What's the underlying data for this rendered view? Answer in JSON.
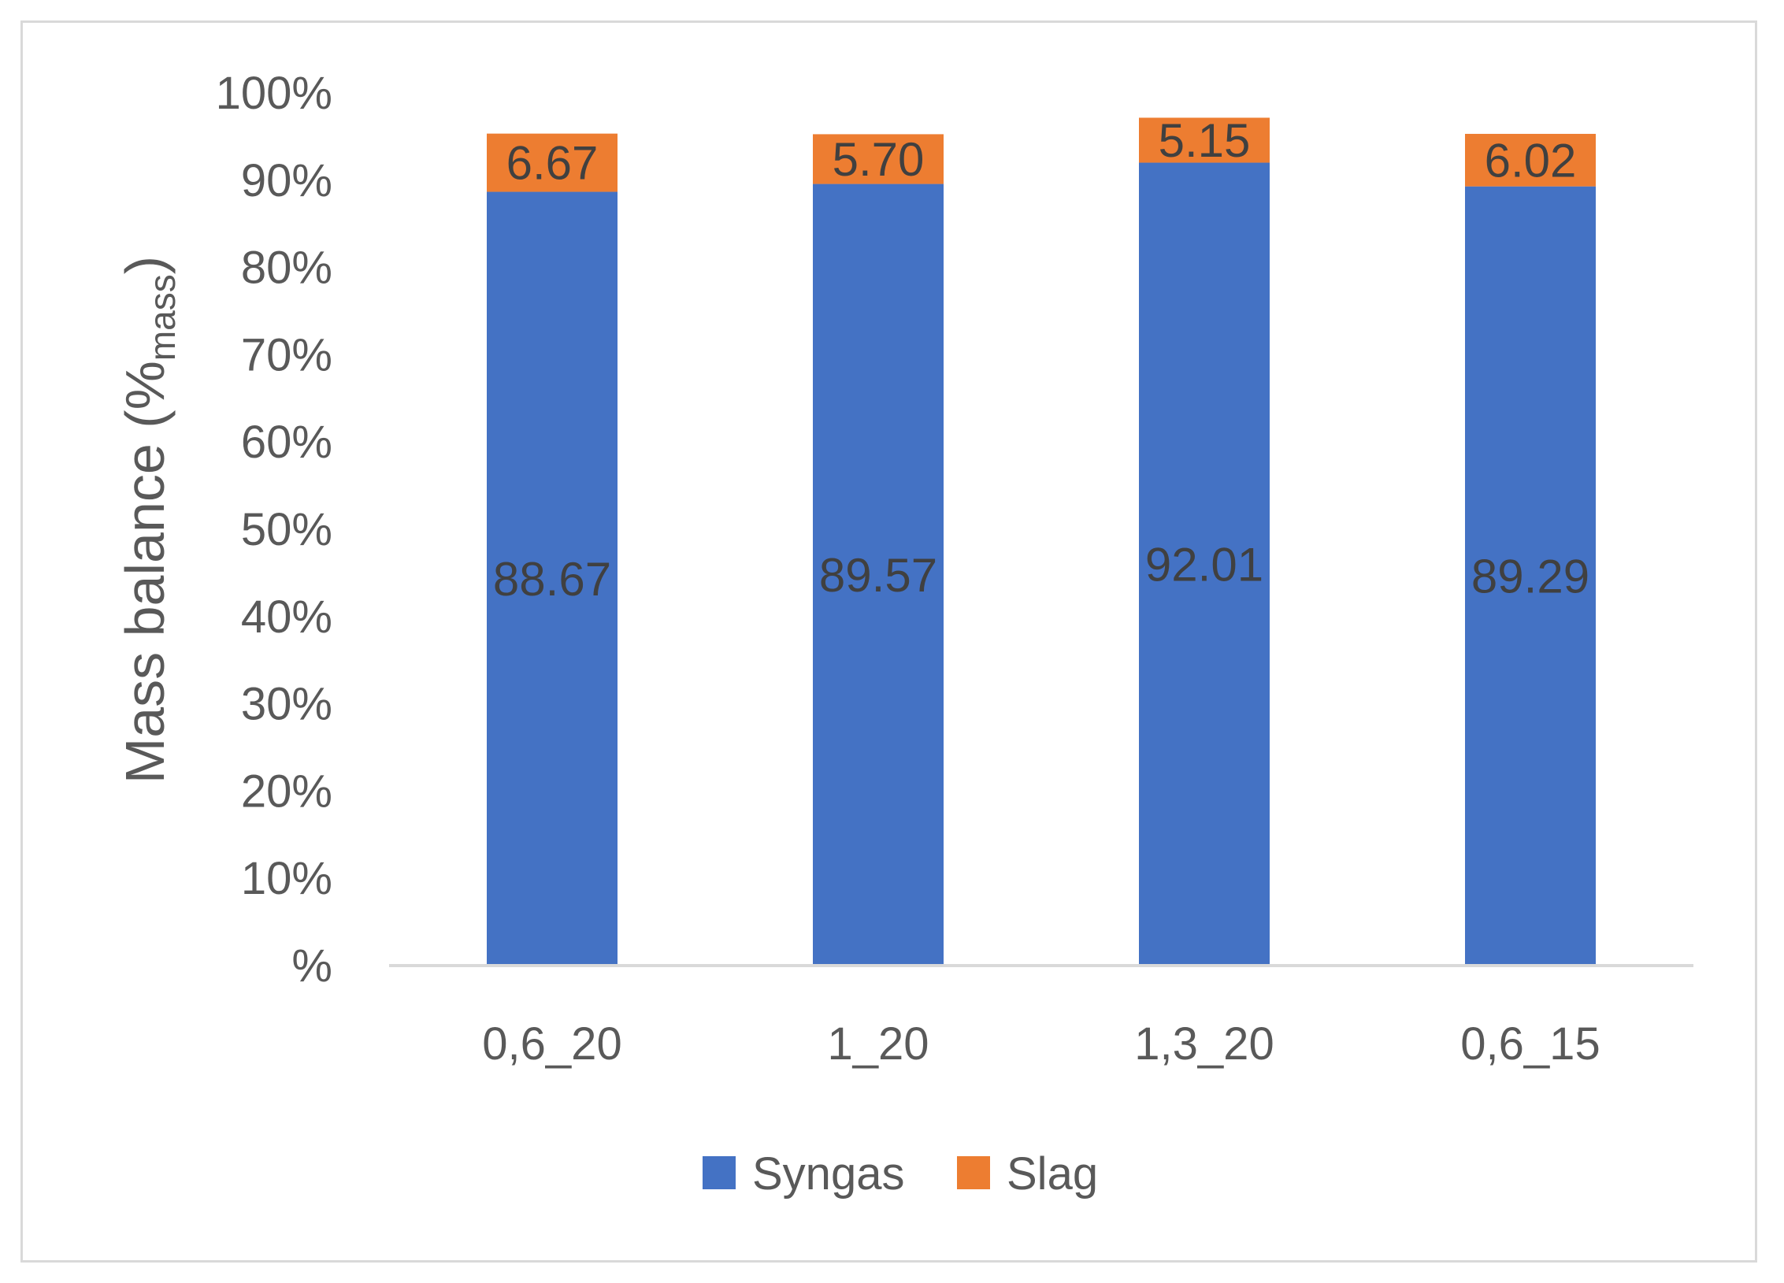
{
  "chart_data": {
    "type": "bar",
    "stacked": true,
    "title": "",
    "xlabel": "",
    "ylabel": "Mass balance (%",
    "ylabel_subscript": "mass",
    "ylabel_close": ")",
    "ylim": [
      0,
      100
    ],
    "yticks": [
      "%",
      "10%",
      "20%",
      "30%",
      "40%",
      "50%",
      "60%",
      "70%",
      "80%",
      "90%",
      "100%"
    ],
    "categories": [
      "0,6_20",
      "1_20",
      "1,3_20",
      "0,6_15"
    ],
    "series": [
      {
        "name": "Syngas",
        "color": "#4472C4",
        "values": [
          88.67,
          89.57,
          92.01,
          89.29
        ],
        "labels": [
          "88.67",
          "89.57",
          "92.01",
          "89.29"
        ]
      },
      {
        "name": "Slag",
        "color": "#ED7D31",
        "values": [
          6.67,
          5.7,
          5.15,
          6.02
        ],
        "labels": [
          "6.67",
          "5.70",
          "5.15",
          "6.02"
        ]
      }
    ],
    "legend_position": "bottom",
    "grid": false
  }
}
